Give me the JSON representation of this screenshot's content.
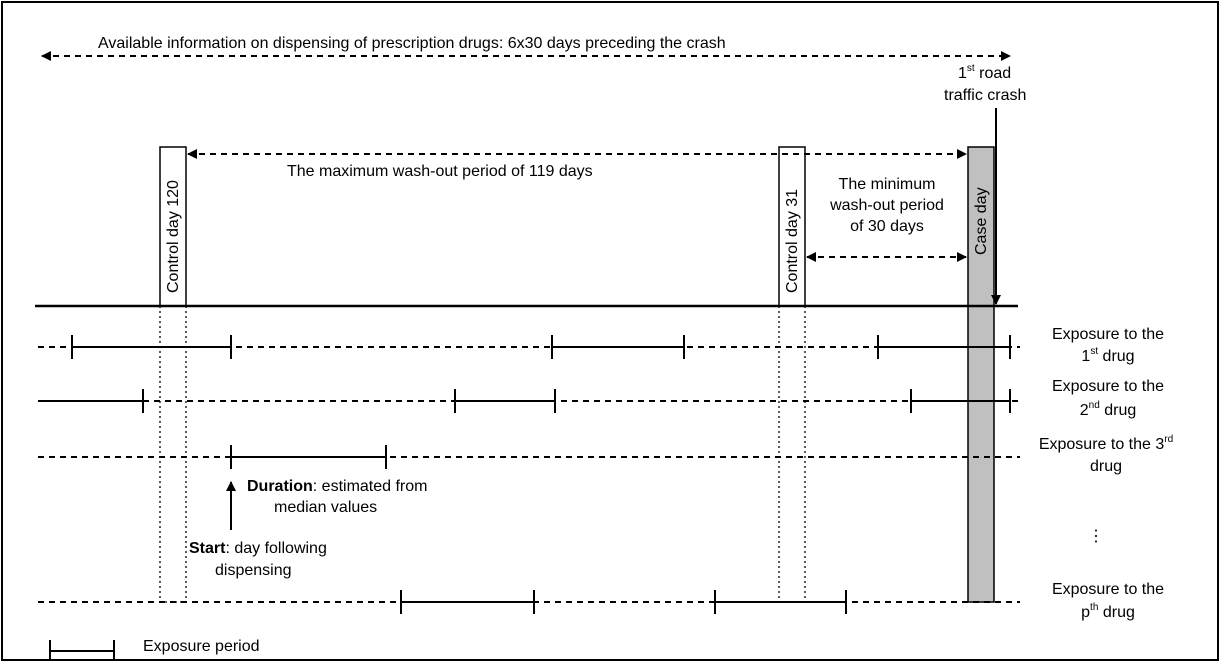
{
  "available_info": "Available information on dispensing of prescription drugs: 6x30 days preceding the crash",
  "crash": {
    "line1_ord": "1",
    "line1_sup": "st",
    "line1_rest": " road",
    "line2": "traffic crash"
  },
  "max_washout": "The maximum wash-out period of 119 days",
  "min_washout": [
    "The minimum",
    "wash-out period",
    "of 30 days"
  ],
  "control_day_120": "Control day 120",
  "control_day_31": "Control day 31",
  "case_day": "Case day",
  "drugs": [
    {
      "pre": "Exposure to the",
      "ord": "1",
      "sup": "st",
      "post": " drug"
    },
    {
      "pre": "Exposure to the",
      "ord": "2",
      "sup": "nd",
      "post": " drug"
    },
    {
      "pre": "Exposure to the 3",
      "sup": "rd",
      "post": "drug"
    },
    {
      "pre": "Exposure to the",
      "ord": "p",
      "sup": "th",
      "post": " drug"
    }
  ],
  "ellipsis": "⋮",
  "duration": {
    "bold": "Duration",
    "rest": ": estimated from",
    "line2": "median values"
  },
  "start": {
    "bold": "Start",
    "rest": ": day following",
    "line2": "dispensing"
  },
  "legend_label": "Exposure period",
  "colors": {
    "case_day_fill": "#c0c0c0",
    "line": "#000000"
  }
}
